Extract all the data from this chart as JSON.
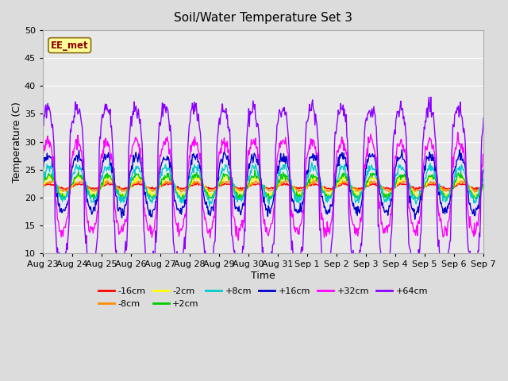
{
  "title": "Soil/Water Temperature Set 3",
  "xlabel": "Time",
  "ylabel": "Temperature (C)",
  "ylim": [
    10,
    50
  ],
  "xlim_days": 15,
  "xtick_labels": [
    "Aug 23",
    "Aug 24",
    "Aug 25",
    "Aug 26",
    "Aug 27",
    "Aug 28",
    "Aug 29",
    "Aug 30",
    "Aug 31",
    "Sep 1",
    "Sep 2",
    "Sep 3",
    "Sep 4",
    "Sep 5",
    "Sep 6",
    "Sep 7"
  ],
  "annotation_text": "EE_met",
  "annotation_color": "#8B0000",
  "annotation_bg": "#FFFF99",
  "background_color": "#DCDCDC",
  "plot_bg_color": "#E8E8E8",
  "legend": [
    {
      "label": "-16cm",
      "color": "#FF0000"
    },
    {
      "label": "-8cm",
      "color": "#FF8C00"
    },
    {
      "label": "-2cm",
      "color": "#FFFF00"
    },
    {
      "label": "+2cm",
      "color": "#00CC00"
    },
    {
      "label": "+8cm",
      "color": "#00CCCC"
    },
    {
      "label": "+16cm",
      "color": "#0000CD"
    },
    {
      "label": "+32cm",
      "color": "#FF00FF"
    },
    {
      "label": "+64cm",
      "color": "#8B00FF"
    }
  ],
  "grid_color": "#FFFFFF",
  "line_width": 1.0
}
